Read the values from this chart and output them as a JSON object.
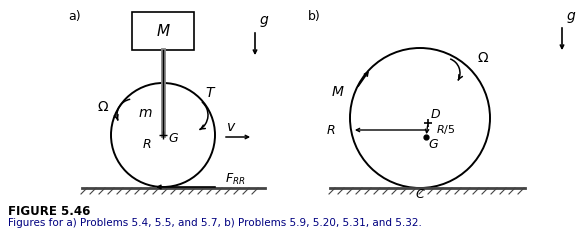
{
  "bg_color": "#ffffff",
  "figure_title": "FIGURE 5.46",
  "figure_caption": "Figures for a) Problems 5.4, 5.5, and 5.7, b) Problems 5.9, 5.20, 5.31, and 5.32.",
  "label_a": "a)",
  "label_b": "b)",
  "caption_color": "#000000",
  "caption_blue": "#000080"
}
